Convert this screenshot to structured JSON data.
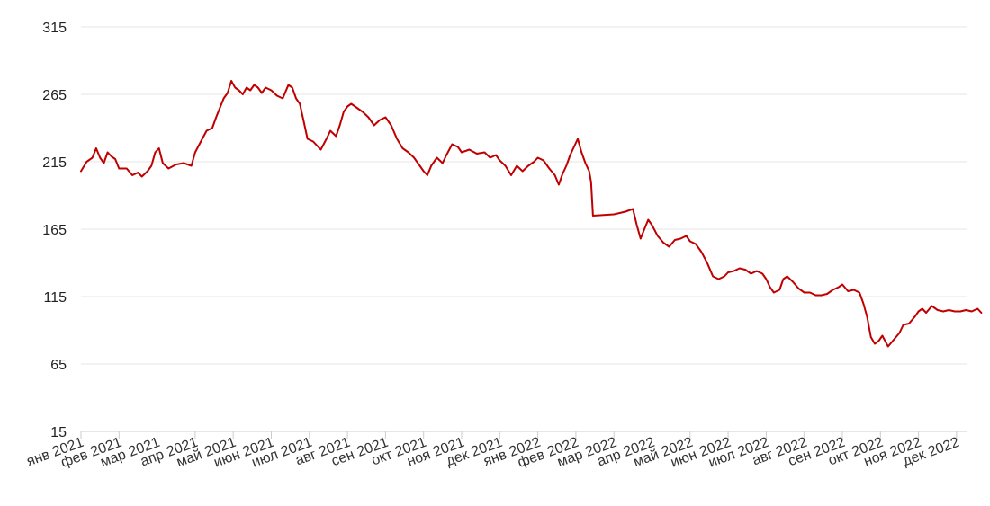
{
  "chart_data": {
    "type": "line",
    "title": "",
    "xlabel": "",
    "ylabel": "",
    "ylim": [
      15,
      315
    ],
    "y_ticks": [
      315,
      265,
      215,
      165,
      115,
      65,
      15
    ],
    "x_ticks": [
      "янв 2021",
      "фев 2021",
      "мар 2021",
      "апр 2021",
      "май 2021",
      "июн 2021",
      "июл 2021",
      "авг 2021",
      "сен 2021",
      "окт 2021",
      "ноя 2021",
      "дек 2021",
      "янв 2022",
      "фев 2022",
      "мар 2022",
      "апр 2022",
      "май 2022",
      "июн 2022",
      "июл 2022",
      "авг 2022",
      "сен 2022",
      "окт 2022",
      "ноя 2022",
      "дек 2022"
    ],
    "grid": true,
    "legend": "none",
    "series": [
      {
        "color": "#c00000",
        "points": [
          [
            0,
            208
          ],
          [
            0.15,
            215
          ],
          [
            0.3,
            218
          ],
          [
            0.4,
            225
          ],
          [
            0.5,
            218
          ],
          [
            0.6,
            214
          ],
          [
            0.7,
            222
          ],
          [
            0.8,
            219
          ],
          [
            0.9,
            217
          ],
          [
            1.0,
            210
          ],
          [
            1.2,
            210
          ],
          [
            1.35,
            205
          ],
          [
            1.5,
            207
          ],
          [
            1.6,
            204
          ],
          [
            1.75,
            208
          ],
          [
            1.85,
            212
          ],
          [
            1.95,
            222
          ],
          [
            2.05,
            225
          ],
          [
            2.15,
            214
          ],
          [
            2.3,
            210
          ],
          [
            2.5,
            213
          ],
          [
            2.7,
            214
          ],
          [
            2.9,
            212
          ],
          [
            3.0,
            222
          ],
          [
            3.15,
            230
          ],
          [
            3.3,
            238
          ],
          [
            3.45,
            240
          ],
          [
            3.55,
            248
          ],
          [
            3.65,
            255
          ],
          [
            3.75,
            262
          ],
          [
            3.85,
            266
          ],
          [
            3.95,
            275
          ],
          [
            4.05,
            270
          ],
          [
            4.15,
            268
          ],
          [
            4.25,
            265
          ],
          [
            4.35,
            270
          ],
          [
            4.45,
            268
          ],
          [
            4.55,
            272
          ],
          [
            4.65,
            270
          ],
          [
            4.75,
            266
          ],
          [
            4.85,
            270
          ],
          [
            5.0,
            268
          ],
          [
            5.15,
            264
          ],
          [
            5.3,
            262
          ],
          [
            5.45,
            272
          ],
          [
            5.55,
            270
          ],
          [
            5.65,
            262
          ],
          [
            5.75,
            258
          ],
          [
            5.85,
            245
          ],
          [
            5.95,
            232
          ],
          [
            6.1,
            230
          ],
          [
            6.3,
            224
          ],
          [
            6.45,
            232
          ],
          [
            6.55,
            238
          ],
          [
            6.7,
            234
          ],
          [
            6.8,
            242
          ],
          [
            6.9,
            252
          ],
          [
            7.0,
            256
          ],
          [
            7.1,
            258
          ],
          [
            7.25,
            255
          ],
          [
            7.4,
            252
          ],
          [
            7.55,
            248
          ],
          [
            7.7,
            242
          ],
          [
            7.85,
            246
          ],
          [
            8.0,
            248
          ],
          [
            8.15,
            242
          ],
          [
            8.3,
            232
          ],
          [
            8.45,
            225
          ],
          [
            8.6,
            222
          ],
          [
            8.75,
            218
          ],
          [
            8.9,
            212
          ],
          [
            9.0,
            208
          ],
          [
            9.1,
            205
          ],
          [
            9.2,
            212
          ],
          [
            9.35,
            218
          ],
          [
            9.5,
            214
          ],
          [
            9.6,
            220
          ],
          [
            9.75,
            228
          ],
          [
            9.9,
            226
          ],
          [
            10.0,
            222
          ],
          [
            10.2,
            224
          ],
          [
            10.4,
            221
          ],
          [
            10.6,
            222
          ],
          [
            10.75,
            218
          ],
          [
            10.9,
            220
          ],
          [
            11.0,
            216
          ],
          [
            11.15,
            212
          ],
          [
            11.3,
            205
          ],
          [
            11.45,
            212
          ],
          [
            11.6,
            208
          ],
          [
            11.75,
            212
          ],
          [
            11.9,
            215
          ],
          [
            12.0,
            218
          ],
          [
            12.15,
            216
          ],
          [
            12.3,
            210
          ],
          [
            12.45,
            205
          ],
          [
            12.55,
            198
          ],
          [
            12.65,
            206
          ],
          [
            12.75,
            212
          ],
          [
            12.85,
            220
          ],
          [
            12.95,
            226
          ],
          [
            13.05,
            232
          ],
          [
            13.15,
            222
          ],
          [
            13.25,
            214
          ],
          [
            13.35,
            208
          ],
          [
            13.4,
            200
          ],
          [
            13.45,
            175
          ],
          [
            14.0,
            176
          ],
          [
            14.3,
            178
          ],
          [
            14.5,
            180
          ],
          [
            14.6,
            168
          ],
          [
            14.7,
            158
          ],
          [
            14.8,
            165
          ],
          [
            14.9,
            172
          ],
          [
            15.0,
            168
          ],
          [
            15.15,
            160
          ],
          [
            15.3,
            155
          ],
          [
            15.45,
            152
          ],
          [
            15.6,
            157
          ],
          [
            15.75,
            158
          ],
          [
            15.9,
            160
          ],
          [
            16.0,
            156
          ],
          [
            16.15,
            154
          ],
          [
            16.3,
            148
          ],
          [
            16.45,
            140
          ],
          [
            16.6,
            130
          ],
          [
            16.75,
            128
          ],
          [
            16.9,
            130
          ],
          [
            17.0,
            133
          ],
          [
            17.15,
            134
          ],
          [
            17.3,
            136
          ],
          [
            17.45,
            135
          ],
          [
            17.6,
            132
          ],
          [
            17.75,
            134
          ],
          [
            17.9,
            132
          ],
          [
            18.0,
            128
          ],
          [
            18.1,
            122
          ],
          [
            18.2,
            118
          ],
          [
            18.35,
            120
          ],
          [
            18.45,
            128
          ],
          [
            18.55,
            130
          ],
          [
            18.7,
            126
          ],
          [
            18.85,
            121
          ],
          [
            19.0,
            118
          ],
          [
            19.15,
            118
          ],
          [
            19.3,
            116
          ],
          [
            19.45,
            116
          ],
          [
            19.6,
            117
          ],
          [
            19.75,
            120
          ],
          [
            19.9,
            122
          ],
          [
            20.0,
            124
          ],
          [
            20.15,
            119
          ],
          [
            20.3,
            120
          ],
          [
            20.45,
            118
          ],
          [
            20.55,
            110
          ],
          [
            20.65,
            100
          ],
          [
            20.75,
            85
          ],
          [
            20.85,
            80
          ],
          [
            20.95,
            82
          ],
          [
            21.05,
            86
          ],
          [
            21.2,
            78
          ],
          [
            21.35,
            83
          ],
          [
            21.5,
            88
          ],
          [
            21.6,
            94
          ],
          [
            21.75,
            95
          ],
          [
            21.9,
            100
          ],
          [
            22.0,
            104
          ],
          [
            22.1,
            106
          ],
          [
            22.2,
            103
          ],
          [
            22.35,
            108
          ],
          [
            22.5,
            105
          ],
          [
            22.65,
            104
          ],
          [
            22.8,
            105
          ],
          [
            22.95,
            104
          ],
          [
            23.1,
            104
          ],
          [
            23.25,
            105
          ],
          [
            23.4,
            104
          ],
          [
            23.55,
            106
          ],
          [
            23.65,
            103
          ]
        ]
      }
    ]
  }
}
